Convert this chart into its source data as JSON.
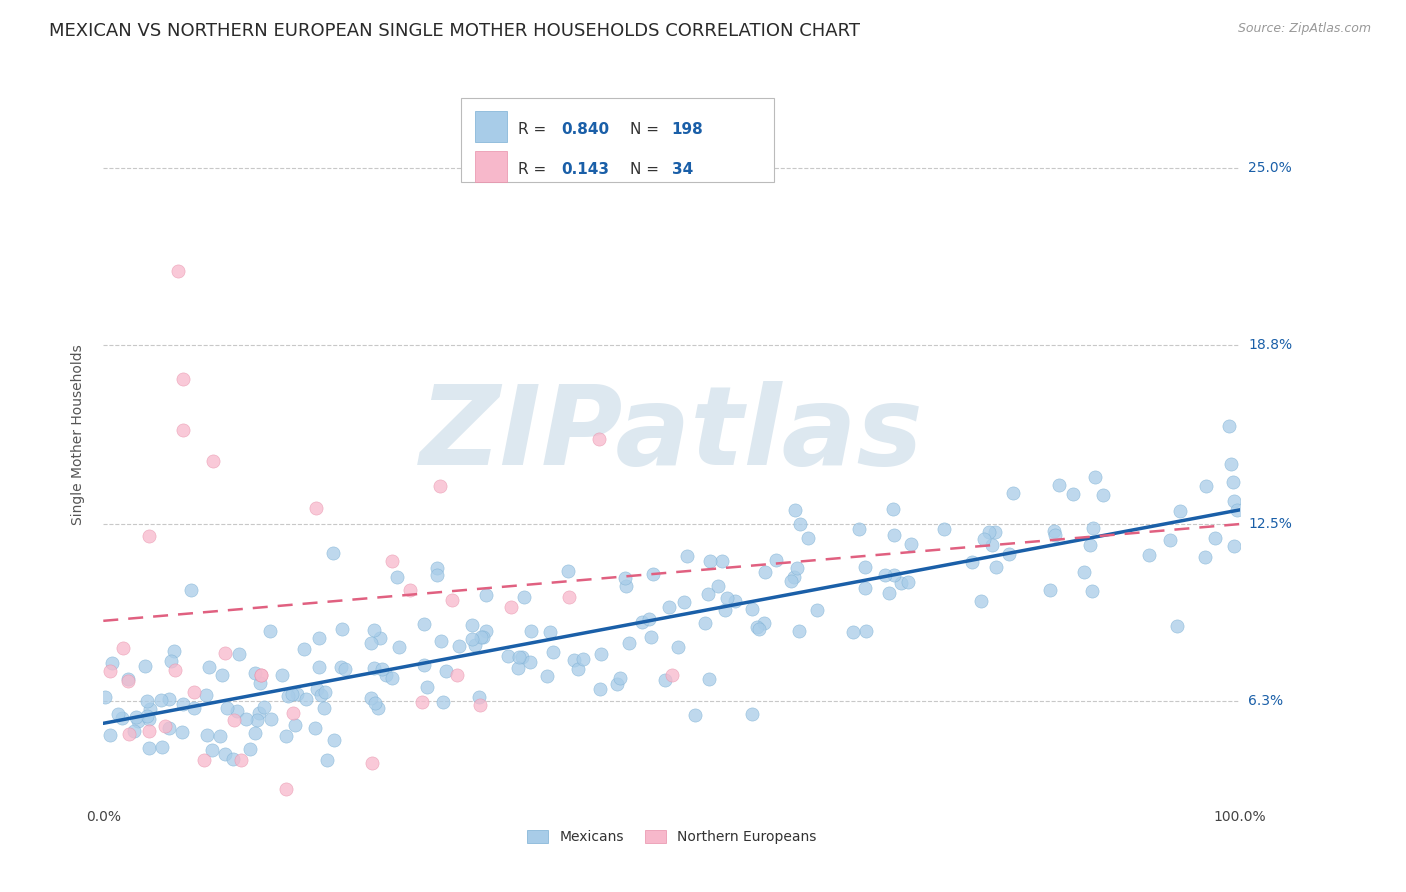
{
  "title": "MEXICAN VS NORTHERN EUROPEAN SINGLE MOTHER HOUSEHOLDS CORRELATION CHART",
  "source": "Source: ZipAtlas.com",
  "ylabel": "Single Mother Households",
  "xlim": [
    0,
    1.0
  ],
  "ylim": [
    0.028,
    0.285
  ],
  "yticks": [
    0.063,
    0.125,
    0.188,
    0.25
  ],
  "ytick_labels": [
    "6.3%",
    "12.5%",
    "18.8%",
    "25.0%"
  ],
  "blue_R": 0.84,
  "blue_N": 198,
  "pink_R": 0.143,
  "pink_N": 34,
  "blue_color": "#a8cce8",
  "blue_edge_color": "#7bafd4",
  "blue_line_color": "#1a5fa8",
  "pink_color": "#f7b8cb",
  "pink_edge_color": "#e890aa",
  "pink_line_color": "#e06080",
  "marker_size": 90,
  "grid_color": "#c8c8c8",
  "background_color": "#ffffff",
  "watermark_text": "ZIPatlas",
  "watermark_color": "#dde8f0",
  "title_fontsize": 13,
  "axis_label_fontsize": 10,
  "tick_label_fontsize": 10,
  "legend_fontsize": 11,
  "source_fontsize": 9,
  "blue_line_intercept": 0.055,
  "blue_line_slope": 0.075,
  "pink_line_intercept": 0.091,
  "pink_line_slope": 0.034,
  "legend_label_blue": "Mexicans",
  "legend_label_pink": "Northern Europeans"
}
